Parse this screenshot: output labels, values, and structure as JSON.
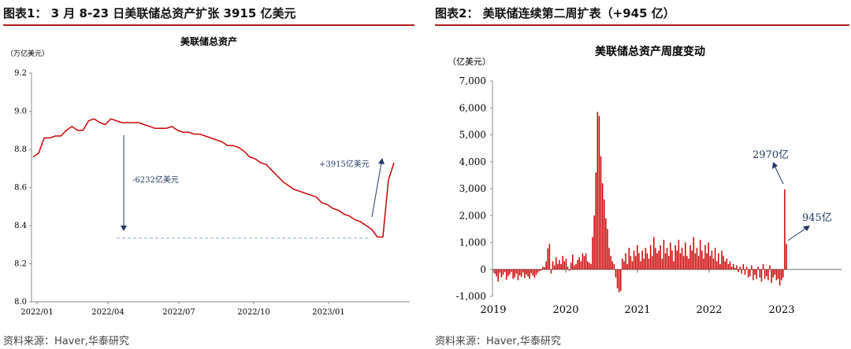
{
  "left": {
    "title": "图表1：  3 月 8-23 日美联储总资产扩张 3915 亿美元",
    "source": "资料来源：Haver,华泰研究"
  },
  "right": {
    "title": "图表2：  美联储连续第二周扩表（+945 亿）",
    "source": "资料来源：Haver,华泰研究"
  },
  "colors": {
    "accent": "#b01c1c",
    "series": "#cc0000",
    "annotation": "#1f3864",
    "dash": "#8faadc"
  },
  "chart_data": [
    {
      "type": "line",
      "title": "美联储总资产",
      "ylabel": "（万亿美元）",
      "ylim": [
        8.0,
        9.2
      ],
      "yticks": [
        "8.0",
        "8.2",
        "8.4",
        "8.6",
        "8.8",
        "9.0",
        "9.2"
      ],
      "xticks": [
        "2022/01",
        "2022/04",
        "2022/07",
        "2022/10",
        "2023/01"
      ],
      "x_start": "2022/01",
      "x_end": "2023/03",
      "series": [
        {
          "values": [
            8.76,
            8.78,
            8.86,
            8.86,
            8.87,
            8.87,
            8.9,
            8.92,
            8.9,
            8.9,
            8.95,
            8.96,
            8.94,
            8.93,
            8.96,
            8.95,
            8.94,
            8.94,
            8.94,
            8.94,
            8.93,
            8.92,
            8.91,
            8.91,
            8.91,
            8.92,
            8.9,
            8.89,
            8.89,
            8.88,
            8.88,
            8.87,
            8.86,
            8.85,
            8.84,
            8.82,
            8.82,
            8.81,
            8.79,
            8.76,
            8.75,
            8.73,
            8.72,
            8.69,
            8.66,
            8.63,
            8.61,
            8.59,
            8.58,
            8.57,
            8.56,
            8.55,
            8.52,
            8.51,
            8.49,
            8.48,
            8.46,
            8.45,
            8.43,
            8.42,
            8.4,
            8.38,
            8.34,
            8.34,
            8.64,
            8.73
          ]
        }
      ],
      "annotations": [
        {
          "text": "-6232亿美元"
        },
        {
          "text": "+3915亿美元"
        }
      ]
    },
    {
      "type": "bar",
      "title": "美联储总资产周度变动",
      "ylabel": "（亿美元）",
      "ylim": [
        -1000,
        7000
      ],
      "yticks": [
        "-1,000",
        "0",
        "1,000",
        "2,000",
        "3,000",
        "4,000",
        "5,000",
        "6,000",
        "7,000"
      ],
      "xticks": [
        "2019",
        "2020",
        "2021",
        "2022",
        "2023"
      ],
      "series": [
        {
          "values": [
            -150,
            -250,
            -450,
            -120,
            -300,
            -200,
            -100,
            -380,
            -250,
            -180,
            -90,
            -350,
            -300,
            -150,
            -400,
            -220,
            -280,
            -110,
            -320,
            -190,
            -260,
            -350,
            -140,
            -230,
            -310,
            -200,
            -120,
            -60,
            -40,
            100,
            80,
            300,
            780,
            950,
            -150,
            300,
            150,
            450,
            200,
            350,
            200,
            500,
            300,
            400,
            100,
            -50,
            250,
            550,
            150,
            200,
            350,
            450,
            300,
            600,
            500,
            600,
            300,
            250,
            200,
            1200,
            2000,
            3600,
            5850,
            5700,
            4200,
            3200,
            2600,
            1900,
            1500,
            800,
            500,
            300,
            200,
            -300,
            -700,
            -850,
            -800,
            400,
            300,
            600,
            200,
            800,
            500,
            300,
            700,
            500,
            900,
            600,
            300,
            700,
            400,
            800,
            600,
            400,
            900,
            500,
            1200,
            800,
            600,
            700,
            900,
            400,
            1100,
            600,
            800,
            500,
            1000,
            700,
            300,
            900,
            700,
            1100,
            600,
            800,
            500,
            1000,
            500,
            400,
            900,
            700,
            1200,
            600,
            800,
            500,
            1100,
            700,
            400,
            900,
            600,
            1000,
            500,
            700,
            400,
            800,
            300,
            600,
            200,
            700,
            500,
            300,
            400,
            200,
            300,
            100,
            200,
            50,
            150,
            -100,
            100,
            -150,
            200,
            -200,
            100,
            -300,
            -250,
            150,
            -400,
            -200,
            -350,
            100,
            -300,
            -450,
            200,
            -350,
            -250,
            -400,
            150,
            -500,
            -300,
            -200,
            -400,
            -350,
            -600,
            -400,
            -300,
            2970,
            945
          ]
        }
      ],
      "annotations": [
        {
          "text": "2970亿"
        },
        {
          "text": "945亿"
        }
      ]
    }
  ]
}
